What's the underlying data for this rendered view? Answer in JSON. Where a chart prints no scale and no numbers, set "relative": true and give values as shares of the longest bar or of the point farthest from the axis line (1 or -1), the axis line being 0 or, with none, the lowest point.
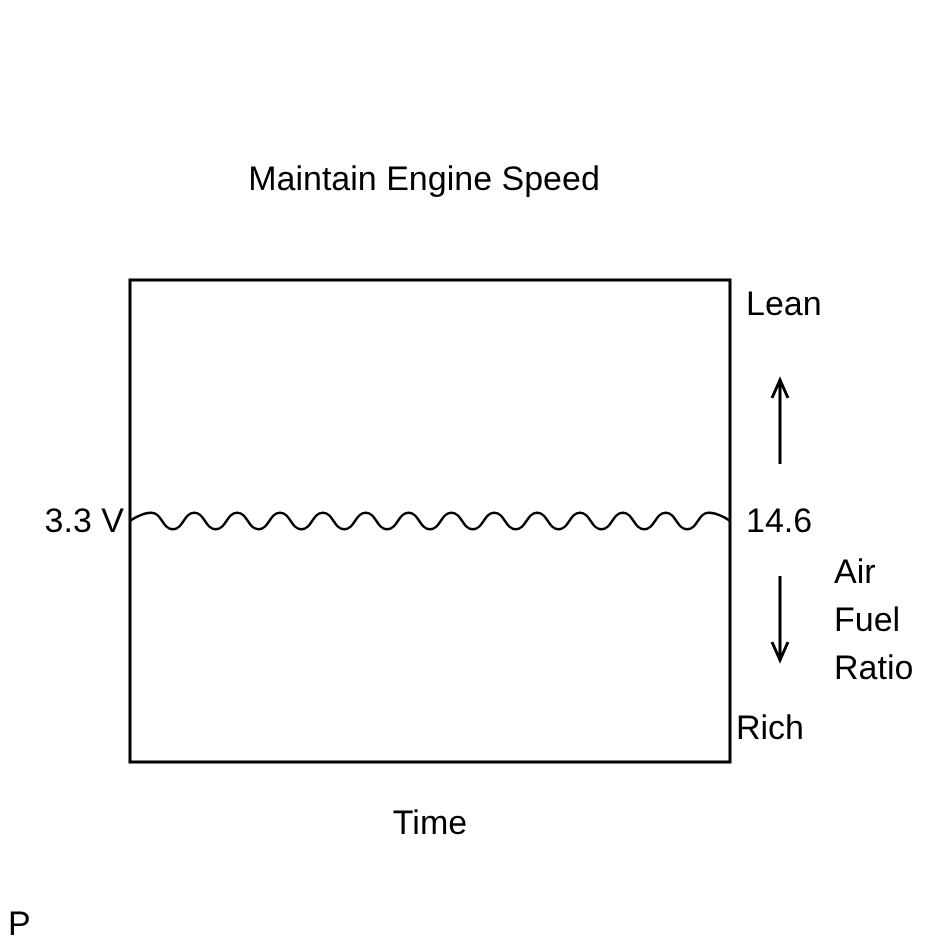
{
  "chart_data": {
    "type": "line",
    "title": "Maintain Engine Speed",
    "xlabel": "Time",
    "y2label": "Air Fuel Ratio",
    "relative": true,
    "grid": false,
    "marker": "none",
    "line_style": "solid",
    "categories": [
      null,
      null,
      null,
      null,
      null,
      null,
      null,
      null,
      null,
      null,
      null,
      null,
      null,
      null,
      null,
      null,
      null,
      null,
      null,
      null,
      null,
      null,
      null,
      null,
      null,
      null,
      null,
      null,
      null
    ],
    "series": [
      {
        "color": "#000000",
        "values": [
          0.967,
          1,
          0.934,
          1,
          0.934,
          1,
          0.934,
          1,
          0.934,
          1,
          0.934,
          1,
          0.934,
          1,
          0.934,
          1,
          0.934,
          1,
          0.934,
          1,
          0.934,
          1,
          0.934,
          1,
          0.934,
          1,
          0.934,
          1,
          0.967
        ]
      }
    ],
    "annotations": [
      "3.3 V",
      "14.6",
      "Lean",
      "Rich",
      "P"
    ]
  }
}
